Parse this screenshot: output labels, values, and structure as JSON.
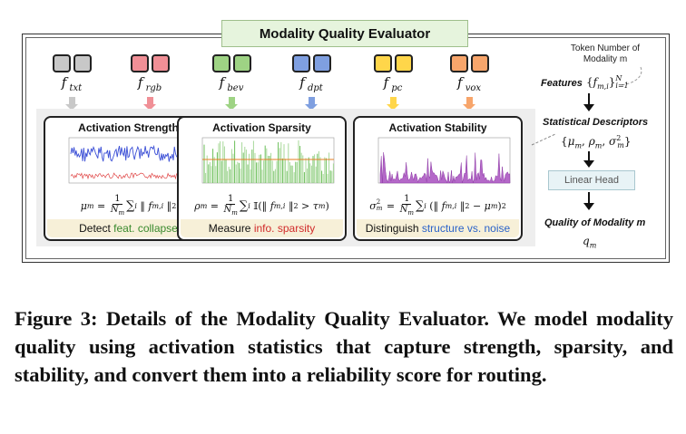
{
  "title": "Modality Quality Evaluator",
  "modalities": [
    {
      "name": "txt",
      "label_base": "f",
      "label_sub": "txt",
      "color": "#c8c8c8",
      "arrow_color": "#c8c8c8"
    },
    {
      "name": "rgb",
      "label_base": "f",
      "label_sub": "rgb",
      "color": "#f08f96",
      "arrow_color": "#f08f96"
    },
    {
      "name": "bev",
      "label_base": "f",
      "label_sub": "bev",
      "color": "#9ed384",
      "arrow_color": "#9ed384"
    },
    {
      "name": "dpt",
      "label_base": "f",
      "label_sub": "dpt",
      "color": "#7f9fe0",
      "arrow_color": "#7f9fe0"
    },
    {
      "name": "pc",
      "label_base": "f",
      "label_sub": "pc",
      "color": "#ffd64a",
      "arrow_color": "#ffd64a"
    },
    {
      "name": "vox",
      "label_base": "f",
      "label_sub": "vox",
      "color": "#f7a56b",
      "arrow_color": "#f7a56b"
    }
  ],
  "panels": [
    {
      "title": "Activation Strength",
      "caption_plain": "Detect ",
      "caption_colored": "feat. collapse",
      "caption_color": "#3a8a2e"
    },
    {
      "title": "Activation Sparsity",
      "caption_plain": "Measure ",
      "caption_colored": "info. sparsity",
      "caption_color": "#d12b2b"
    },
    {
      "title": "Activation Stability",
      "caption_plain": "Distinguish ",
      "caption_colored": "structure vs. noise",
      "caption_color": "#2b63c9"
    }
  ],
  "right": {
    "token_note": "Token Number of Modality m",
    "features_label": "Features",
    "statistical_label": "Statistical Descriptors",
    "linear_head": "Linear Head",
    "quality_label": "Quality of Modality m"
  },
  "caption": "Figure 3: Details of the Modality Quality Evaluator. We model modality quality using activation statistics that capture strength, sparsity, and stability, and convert them into a reliability score for routing."
}
